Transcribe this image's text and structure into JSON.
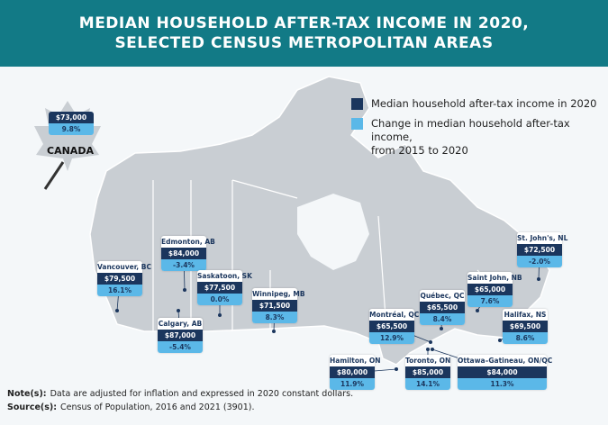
{
  "header": {
    "title_line1": "MEDIAN HOUSEHOLD AFTER-TAX INCOME IN 2020,",
    "title_line2": "SELECTED CENSUS METROPOLITAN AREAS"
  },
  "legend": [
    {
      "label": "Median household after-tax income in 2020"
    },
    {
      "label": "Change in median household after-tax income,",
      "label_line2": "from 2015 to 2020"
    }
  ],
  "national": {
    "name": "CANADA",
    "income": "$73,000",
    "change": "9.8%"
  },
  "callouts": [
    {
      "name": "Vancouver, BC",
      "income": "$79,500",
      "change": "16.1%"
    },
    {
      "name": "Edmonton, AB",
      "income": "$84,000",
      "change": "-3.4%"
    },
    {
      "name": "Saskatoon, SK",
      "income": "$77,500",
      "change": "0.0%"
    },
    {
      "name": "Calgary, AB",
      "income": "$87,000",
      "change": "-5.4%"
    },
    {
      "name": "Winnipeg, MB",
      "income": "$71,500",
      "change": "8.3%"
    },
    {
      "name": "Montréal, QC",
      "income": "$65,500",
      "change": "12.9%"
    },
    {
      "name": "Québec, QC",
      "income": "$65,500",
      "change": "8.4%"
    },
    {
      "name": "Saint John, NB",
      "income": "$65,000",
      "change": "7.6%"
    },
    {
      "name": "St. John's, NL",
      "income": "$72,500",
      "change": "-2.0%"
    },
    {
      "name": "Halifax, NS",
      "income": "$69,500",
      "change": "8.6%"
    },
    {
      "name": "Hamilton, ON",
      "income": "$80,000",
      "change": "11.9%"
    },
    {
      "name": "Toronto, ON",
      "income": "$85,000",
      "change": "14.1%"
    },
    {
      "name": "Ottawa–Gatineau, ON/QC",
      "income": "$84,000",
      "change": "11.3%"
    }
  ],
  "notes": [
    {
      "label": "Note(s):",
      "text": "Data are adjusted for inflation and expressed in 2020 constant dollars."
    },
    {
      "label": "Source(s):",
      "text": "Census of Population, 2016 and 2021 (3901)."
    }
  ]
}
